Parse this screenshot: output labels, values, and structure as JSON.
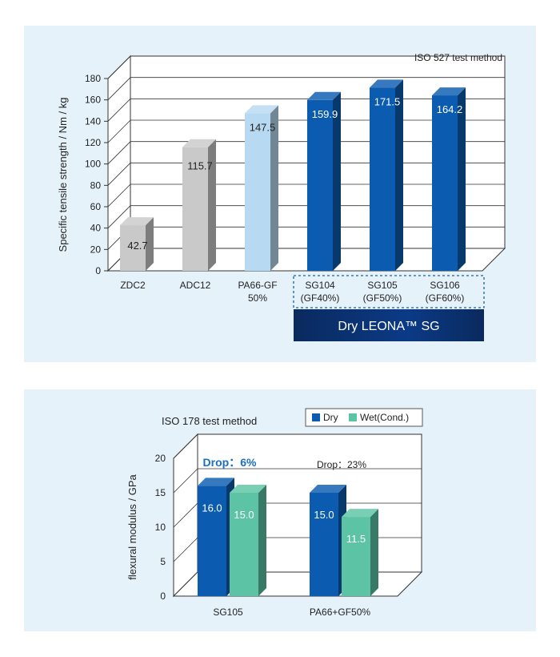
{
  "chart_data": [
    {
      "type": "bar",
      "title": "",
      "annotation": "ISO 527 test method",
      "ylabel": "Specific tensile strength / Nm / kg",
      "xlabel": "",
      "ylim": [
        0,
        180
      ],
      "yticks": [
        "0",
        "20",
        "40",
        "60",
        "80",
        "100",
        "120",
        "140",
        "160",
        "180"
      ],
      "categories": [
        {
          "line1": "ZDC2",
          "line2": ""
        },
        {
          "line1": "ADC12",
          "line2": ""
        },
        {
          "line1": "PA66-GF",
          "line2": "50%"
        },
        {
          "line1": "SG104",
          "line2": "(GF40%)"
        },
        {
          "line1": "SG105",
          "line2": "(GF50%)"
        },
        {
          "line1": "SG106",
          "line2": "(GF60%)"
        }
      ],
      "values": [
        42.7,
        115.7,
        147.5,
        159.9,
        171.5,
        164.2
      ],
      "value_labels": [
        "42.7",
        "115.7",
        "147.5",
        "159.9",
        "171.5",
        "164.2"
      ],
      "bar_colors": [
        "#c9c9c9",
        "#c9c9c9",
        "#b8d9f2",
        "#0b5cb0",
        "#0b5cb0",
        "#0b5cb0"
      ],
      "group_label": "Dry LEONA™ SG",
      "grid": true
    },
    {
      "type": "bar",
      "title": "",
      "annotation": "ISO 178 test method",
      "ylabel": "flexural modulus / GPa",
      "xlabel": "",
      "ylim": [
        0,
        20
      ],
      "yticks": [
        "0",
        "5",
        "10",
        "15",
        "20"
      ],
      "categories": [
        "SG105",
        "PA66+GF50%"
      ],
      "series": [
        {
          "name": "Dry",
          "values": [
            16.0,
            15.0
          ],
          "labels": [
            "16.0",
            "15.0"
          ],
          "color": "#0b5cb0"
        },
        {
          "name": "Wet(Cond.)",
          "values": [
            15.0,
            11.5
          ],
          "labels": [
            "15.0",
            "11.5"
          ],
          "color": "#5cc4a4"
        }
      ],
      "drop_labels": [
        "Drop：6%",
        "Drop：23%"
      ],
      "legend_position": "top-right",
      "grid": true
    }
  ]
}
